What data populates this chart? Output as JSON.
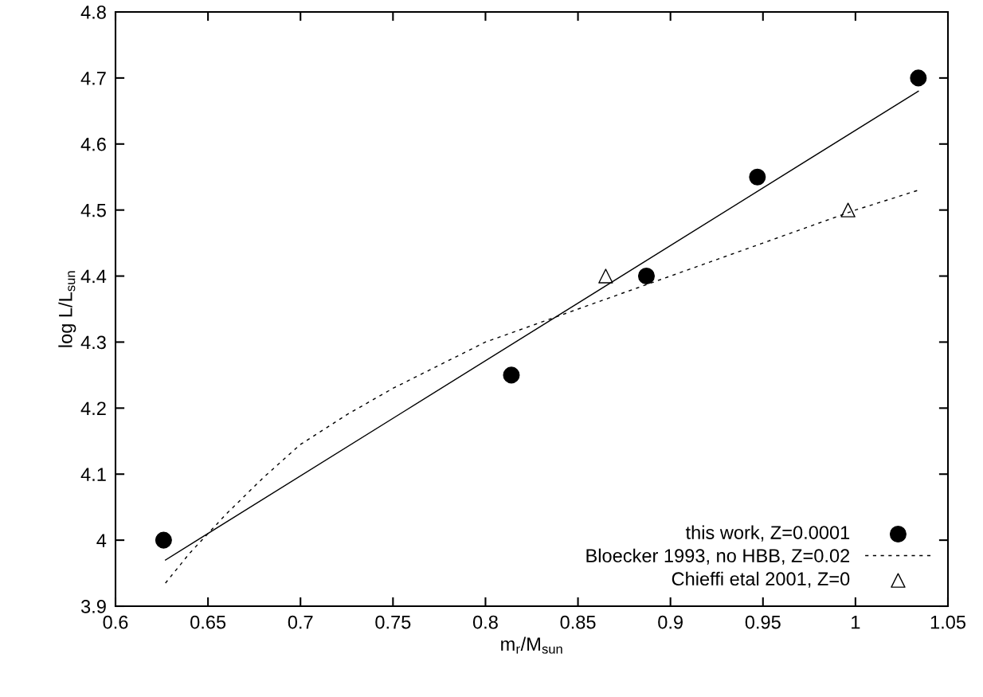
{
  "chart_data": {
    "type": "scatter",
    "xlabel": "m$_{r}$/M$_{sun}$",
    "ylabel": "log L/L$_{sun}$",
    "xlim": [
      0.6,
      1.05
    ],
    "ylim": [
      3.9,
      4.8
    ],
    "xticks": [
      0.6,
      0.65,
      0.7,
      0.75,
      0.8,
      0.85,
      0.9,
      0.95,
      1,
      1.05
    ],
    "yticks": [
      3.9,
      4,
      4.1,
      4.2,
      4.3,
      4.4,
      4.5,
      4.6,
      4.7,
      4.8
    ],
    "grid": false,
    "legend": "bottom right",
    "series": [
      {
        "name": "this work, Z=0.0001",
        "marker": "circle",
        "color": "#000000",
        "x": [
          0.626,
          0.814,
          0.887,
          0.947,
          1.034
        ],
        "values": [
          4.0,
          4.25,
          4.4,
          4.55,
          4.7
        ]
      },
      {
        "type": "line",
        "line_style": "solid",
        "color": "#000000",
        "x": [
          0.627,
          1.034
        ],
        "values": [
          3.97,
          4.68
        ]
      },
      {
        "name": "Bloecker 1993, no HBB, Z=0.02",
        "type": "line",
        "line_style": "dashed",
        "color": "#000000",
        "x": [
          0.627,
          0.64,
          0.65,
          0.66,
          0.68,
          0.7,
          0.725,
          0.75,
          0.775,
          0.8,
          0.825,
          0.85,
          0.875,
          0.9,
          0.925,
          0.95,
          0.975,
          1.0,
          1.034
        ],
        "values": [
          3.935,
          3.98,
          4.01,
          4.04,
          4.095,
          4.145,
          4.19,
          4.23,
          4.265,
          4.3,
          4.325,
          4.35,
          4.375,
          4.4,
          4.425,
          4.45,
          4.475,
          4.5,
          4.53
        ]
      },
      {
        "name": "Chieffi etal 2001, Z=0",
        "marker": "triangle",
        "color": "#000000",
        "x": [
          0.865,
          0.996
        ],
        "values": [
          4.4,
          4.5
        ]
      }
    ]
  }
}
